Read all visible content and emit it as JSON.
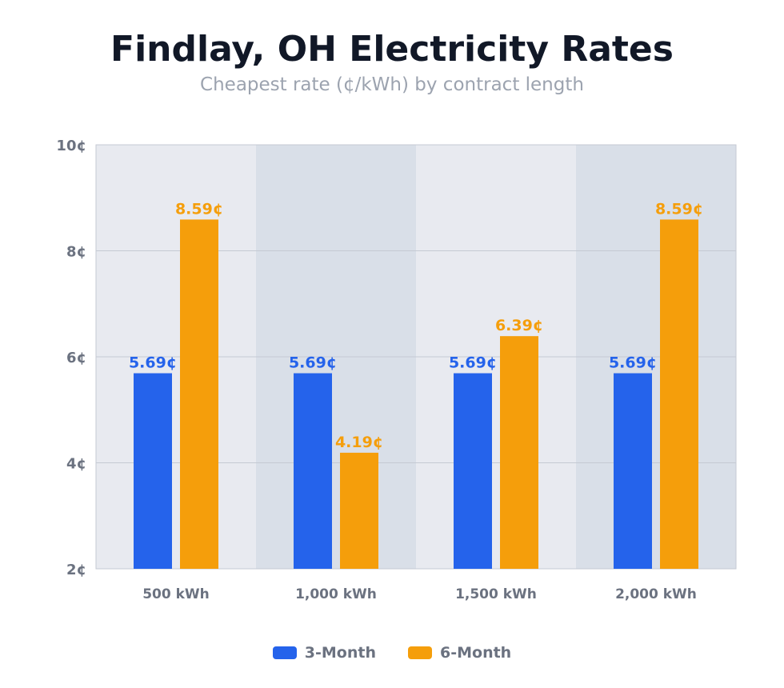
{
  "chart_data": {
    "type": "bar",
    "title": "Findlay, OH Electricity Rates",
    "subtitle": "Cheapest rate (¢/kWh) by contract length",
    "categories": [
      "500 kWh",
      "1,000 kWh",
      "1,500 kWh",
      "2,000 kWh"
    ],
    "series": [
      {
        "name": "3-Month",
        "values": [
          5.69,
          5.69,
          5.69,
          5.69
        ],
        "color": "#2563eb"
      },
      {
        "name": "6-Month",
        "values": [
          8.59,
          4.19,
          6.39,
          8.59
        ],
        "color": "#f59e0b"
      }
    ],
    "ylim": [
      2,
      10
    ],
    "yticks": [
      2,
      4,
      6,
      8,
      10
    ],
    "value_suffix": "¢",
    "grid": true,
    "legend": "bottom",
    "band_colors": [
      "#e8eaf0",
      "#d9dfe8"
    ]
  }
}
